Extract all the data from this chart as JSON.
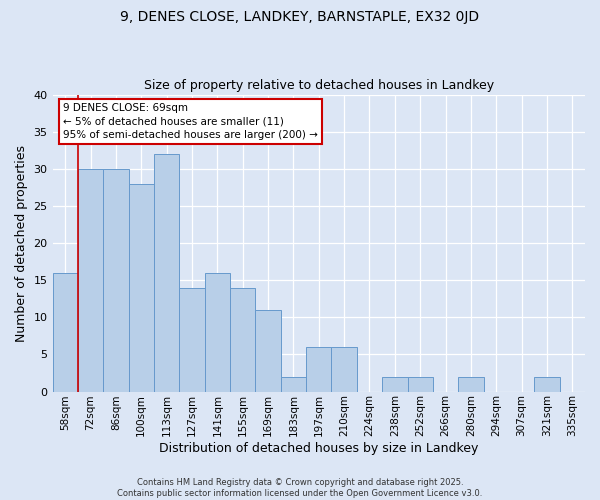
{
  "title": "9, DENES CLOSE, LANDKEY, BARNSTAPLE, EX32 0JD",
  "subtitle": "Size of property relative to detached houses in Landkey",
  "xlabel": "Distribution of detached houses by size in Landkey",
  "ylabel": "Number of detached properties",
  "categories": [
    "58sqm",
    "72sqm",
    "86sqm",
    "100sqm",
    "113sqm",
    "127sqm",
    "141sqm",
    "155sqm",
    "169sqm",
    "183sqm",
    "197sqm",
    "210sqm",
    "224sqm",
    "238sqm",
    "252sqm",
    "266sqm",
    "280sqm",
    "294sqm",
    "307sqm",
    "321sqm",
    "335sqm"
  ],
  "values": [
    16,
    30,
    30,
    28,
    32,
    14,
    16,
    14,
    11,
    2,
    6,
    6,
    0,
    2,
    2,
    0,
    2,
    0,
    0,
    2,
    0
  ],
  "bar_color": "#b8cfe8",
  "bar_edge_color": "#6699cc",
  "background_color": "#dce6f5",
  "annotation_text": "9 DENES CLOSE: 69sqm\n← 5% of detached houses are smaller (11)\n95% of semi-detached houses are larger (200) →",
  "annotation_box_facecolor": "#ffffff",
  "annotation_border_color": "#cc0000",
  "ylim": [
    0,
    40
  ],
  "yticks": [
    0,
    5,
    10,
    15,
    20,
    25,
    30,
    35,
    40
  ],
  "footer_line1": "Contains HM Land Registry data © Crown copyright and database right 2025.",
  "footer_line2": "Contains public sector information licensed under the Open Government Licence v3.0.",
  "figsize": [
    6.0,
    5.0
  ],
  "dpi": 100
}
